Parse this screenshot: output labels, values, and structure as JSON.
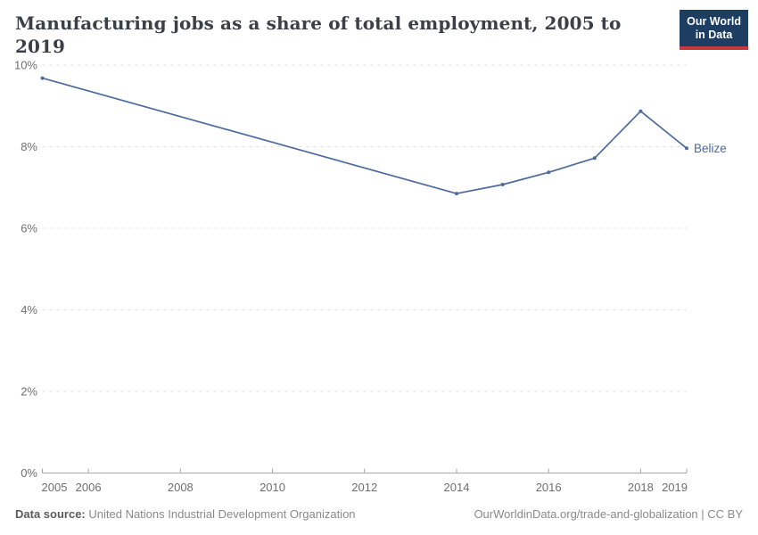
{
  "title": "Manufacturing jobs as a share of total employment, 2005 to 2019",
  "logo": {
    "line1": "Our World",
    "line2": "in Data"
  },
  "entity_label": "Belize",
  "footer": {
    "source_label": "Data source:",
    "source_text": "United Nations Industrial Development Organization",
    "right_text": "OurWorldinData.org/trade-and-globalization | CC BY"
  },
  "colors": {
    "background": "#ffffff",
    "line": "#4C6A9C",
    "grid": "#e2e2e2",
    "axis": "#a8a8a8",
    "tick_label": "#6e6e6e",
    "title": "#3a4046",
    "footer_text": "#8a8a8a",
    "footer_bold": "#5b5b5b",
    "logo_bg": "#1d3d63",
    "logo_red": "#c23a3f"
  },
  "chart_data": {
    "type": "line",
    "title": "Manufacturing jobs as a share of total employment, 2005 to 2019",
    "xlabel": "",
    "ylabel": "",
    "xlim": [
      2005,
      2019
    ],
    "ylim": [
      0,
      10
    ],
    "grid": "horizontal-dashed",
    "legend": "line-end-label",
    "x_tick_years": [
      2005,
      2006,
      2008,
      2010,
      2012,
      2014,
      2016,
      2018,
      2019
    ],
    "x_tick_labels": [
      "2005",
      "2006",
      "2008",
      "2010",
      "2012",
      "2014",
      "2016",
      "2018",
      "2019"
    ],
    "y_tick_values": [
      0,
      2,
      4,
      6,
      8,
      10
    ],
    "y_tick_labels": [
      "0%",
      "2%",
      "4%",
      "6%",
      "8%",
      "10%"
    ],
    "series": [
      {
        "name": "Belize",
        "color": "#4C6A9C",
        "x": [
          2005,
          2014,
          2015,
          2016,
          2017,
          2018,
          2019
        ],
        "y": [
          9.68,
          6.85,
          7.07,
          7.37,
          7.72,
          8.87,
          7.96
        ]
      }
    ]
  }
}
